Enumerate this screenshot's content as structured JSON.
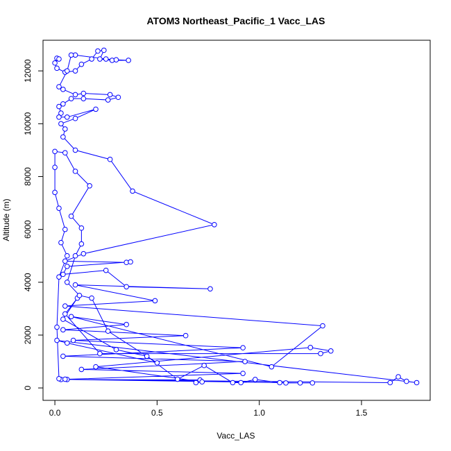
{
  "chart_data": {
    "type": "line",
    "title": "ATOM3 Northeast_Pacific_1 Vacc_LAS",
    "x_label": "Vacc_LAS",
    "y_label": "Altitude (m)",
    "color": "#0000ff",
    "markers": true,
    "xlim": [
      -0.058,
      1.836
    ],
    "ylim": [
      -470,
      13160
    ],
    "xticks": [
      {
        "value": 0,
        "label": "0.0"
      },
      0.5,
      {
        "value": 1,
        "label": "1.0"
      },
      1.5
    ],
    "yticks": [
      0,
      2000,
      4000,
      6000,
      8000,
      10000,
      12000
    ],
    "x": [
      0.01,
      0.02,
      0.0,
      0.01,
      0.05,
      0.1,
      0.13,
      0.18,
      0.21,
      0.24,
      0.22,
      0.28,
      0.36,
      0.3,
      0.25,
      0.1,
      0.08,
      0.06,
      0.02,
      0.04,
      0.1,
      0.14,
      0.27,
      0.31,
      0.26,
      0.14,
      0.08,
      0.04,
      0.02,
      0.03,
      0.02,
      0.06,
      0.2,
      0.1,
      0.03,
      0.05,
      0.04,
      0.1,
      0.27,
      0.38,
      0.78,
      0.14,
      0.05,
      0.35,
      0.37,
      0.06,
      0.04,
      0.25,
      0.35,
      0.76,
      0.1,
      0.49,
      0.05,
      1.31,
      1.06,
      0.08,
      0.35,
      0.04,
      0.64,
      0.09,
      0.92,
      0.04,
      0.93,
      0.13,
      0.92,
      0.03,
      0.71,
      0.69,
      0.72,
      0.2,
      1.25,
      1.35,
      1.3,
      0.22,
      0.05,
      0.11,
      0.04,
      0.3,
      0.45,
      0.6,
      0.73,
      0.87,
      0.91,
      0.98,
      1.1,
      1.13,
      1.26,
      1.2,
      0.06,
      1.64,
      1.68,
      1.72,
      1.77,
      0.01,
      0.06,
      0.5,
      0.26,
      0.18,
      0.12,
      0.06,
      0.1,
      0.13,
      0.13,
      0.08,
      0.17,
      0.1,
      0.05,
      0.0,
      0.0,
      0.0,
      0.02,
      0.05,
      0.03,
      0.06,
      0.02,
      0.01,
      0.02,
      0.05
    ],
    "values": [
      12480,
      12450,
      12300,
      12100,
      11950,
      12000,
      12250,
      12450,
      12750,
      12780,
      12450,
      12400,
      12400,
      12420,
      12450,
      12600,
      12600,
      12000,
      11400,
      11300,
      11100,
      11150,
      11100,
      11000,
      10900,
      10950,
      10950,
      10750,
      10650,
      10400,
      10250,
      10250,
      10550,
      10200,
      10000,
      9800,
      9500,
      9000,
      8650,
      7450,
      6180,
      5080,
      4800,
      4750,
      4770,
      4600,
      4300,
      4450,
      3830,
      3750,
      3900,
      3300,
      3100,
      2350,
      800,
      2700,
      2400,
      2200,
      1980,
      1800,
      1520,
      1200,
      1000,
      700,
      550,
      320,
      300,
      200,
      230,
      800,
      1530,
      1400,
      1300,
      1300,
      2800,
      3400,
      2600,
      1450,
      1200,
      330,
      850,
      200,
      200,
      320,
      200,
      190,
      190,
      190,
      320,
      200,
      420,
      250,
      200,
      1800,
      1700,
      950,
      2150,
      3400,
      3500,
      4000,
      5000,
      5450,
      6050,
      6500,
      7650,
      8200,
      8900,
      8950,
      8350,
      7400,
      6800,
      6000,
      5500,
      5000,
      4200,
      2300,
      350,
      330
    ]
  }
}
